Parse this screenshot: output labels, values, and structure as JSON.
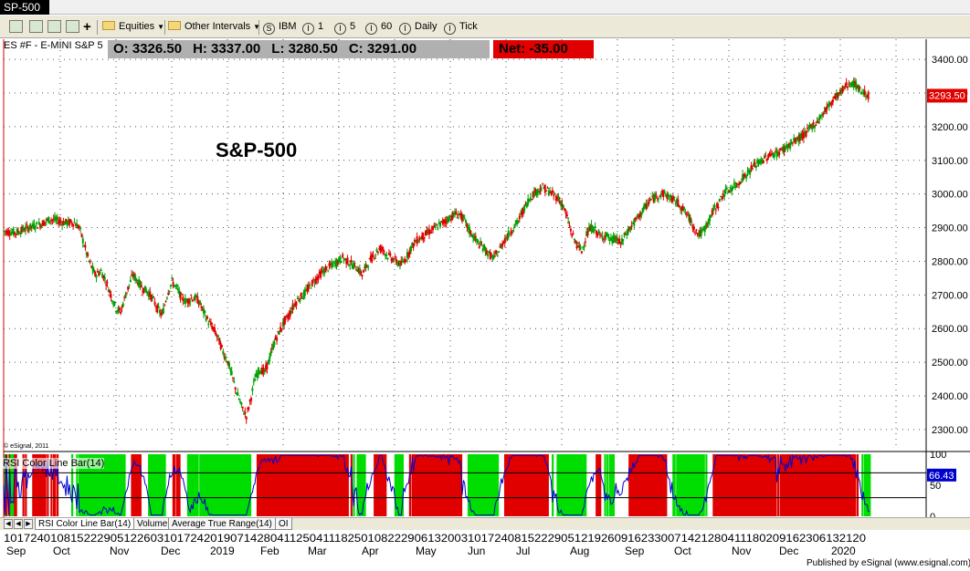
{
  "window": {
    "title": "SP-500"
  },
  "toolbar": {
    "equities_label": "Equities",
    "intervals_label": "Other Intervals",
    "buttons": [
      {
        "icon": "S",
        "label": "IBM"
      },
      {
        "icon": "I",
        "label": "1"
      },
      {
        "icon": "I",
        "label": "5"
      },
      {
        "icon": "I",
        "label": "60"
      },
      {
        "icon": "I",
        "label": "Daily"
      },
      {
        "icon": "I",
        "label": "Tick"
      }
    ]
  },
  "header": {
    "symbol": "ES #F - E-MINI S&P 5",
    "open": "O:  3326.50",
    "high": "H:  3337.00",
    "low": "L:  3280.50",
    "close": "C:  3291.00",
    "net": "Net:  -35.00"
  },
  "watermark": "© eSignal, 2011",
  "tabs": [
    "RSI Color Line Bar(14)",
    "Volume",
    "Average True Range(14)",
    "OI"
  ],
  "footer": "Published by eSignal (www.esignal.com)",
  "colors": {
    "up": "#00a000",
    "down": "#e00000",
    "rsi_line": "#0000cc",
    "rsi_overbought": "#e00000",
    "rsi_oversold": "#00dd00"
  },
  "chart_data": [
    {
      "type": "candlestick",
      "title": "S&P-500",
      "ylim": [
        2240,
        3460
      ],
      "yticks": [
        2300,
        2400,
        2500,
        2600,
        2700,
        2800,
        2900,
        3000,
        3100,
        3200,
        3300,
        3400
      ],
      "last_price": "3293.50",
      "grid": true,
      "closes": [
        [
          0,
          2890
        ],
        [
          10,
          2885
        ],
        [
          20,
          2900
        ],
        [
          30,
          2910
        ],
        [
          38,
          2925
        ],
        [
          45,
          2920
        ],
        [
          50,
          2915
        ],
        [
          58,
          2915
        ],
        [
          62,
          2900
        ],
        [
          66,
          2850
        ],
        [
          70,
          2800
        ],
        [
          75,
          2760
        ],
        [
          80,
          2770
        ],
        [
          84,
          2740
        ],
        [
          88,
          2700
        ],
        [
          92,
          2660
        ],
        [
          96,
          2650
        ],
        [
          100,
          2700
        ],
        [
          103,
          2730
        ],
        [
          106,
          2760
        ],
        [
          110,
          2740
        ],
        [
          114,
          2720
        ],
        [
          118,
          2710
        ],
        [
          122,
          2690
        ],
        [
          126,
          2660
        ],
        [
          130,
          2640
        ],
        [
          134,
          2700
        ],
        [
          138,
          2740
        ],
        [
          142,
          2720
        ],
        [
          146,
          2690
        ],
        [
          150,
          2680
        ],
        [
          154,
          2690
        ],
        [
          158,
          2690
        ],
        [
          160,
          2680
        ],
        [
          164,
          2650
        ],
        [
          168,
          2620
        ],
        [
          172,
          2600
        ],
        [
          176,
          2570
        ],
        [
          180,
          2530
        ],
        [
          184,
          2500
        ],
        [
          188,
          2450
        ],
        [
          192,
          2400
        ],
        [
          196,
          2360
        ],
        [
          199,
          2340
        ],
        [
          202,
          2380
        ],
        [
          206,
          2450
        ],
        [
          210,
          2480
        ],
        [
          214,
          2470
        ],
        [
          218,
          2510
        ],
        [
          222,
          2560
        ],
        [
          226,
          2590
        ],
        [
          230,
          2620
        ],
        [
          234,
          2640
        ],
        [
          238,
          2670
        ],
        [
          242,
          2690
        ],
        [
          246,
          2700
        ],
        [
          250,
          2720
        ],
        [
          254,
          2740
        ],
        [
          258,
          2755
        ],
        [
          262,
          2770
        ],
        [
          266,
          2780
        ],
        [
          270,
          2790
        ],
        [
          274,
          2800
        ],
        [
          278,
          2810
        ],
        [
          282,
          2800
        ],
        [
          286,
          2790
        ],
        [
          290,
          2780
        ],
        [
          294,
          2760
        ],
        [
          298,
          2790
        ],
        [
          302,
          2810
        ],
        [
          306,
          2830
        ],
        [
          310,
          2840
        ],
        [
          314,
          2820
        ],
        [
          318,
          2810
        ],
        [
          322,
          2800
        ],
        [
          326,
          2790
        ],
        [
          330,
          2810
        ],
        [
          334,
          2840
        ],
        [
          338,
          2860
        ],
        [
          342,
          2870
        ],
        [
          346,
          2880
        ],
        [
          350,
          2890
        ],
        [
          354,
          2900
        ],
        [
          358,
          2910
        ],
        [
          362,
          2920
        ],
        [
          366,
          2930
        ],
        [
          370,
          2940
        ],
        [
          374,
          2940
        ],
        [
          378,
          2920
        ],
        [
          382,
          2890
        ],
        [
          386,
          2870
        ],
        [
          390,
          2850
        ],
        [
          394,
          2840
        ],
        [
          398,
          2820
        ],
        [
          402,
          2810
        ],
        [
          406,
          2830
        ],
        [
          410,
          2860
        ],
        [
          414,
          2880
        ],
        [
          418,
          2900
        ],
        [
          422,
          2920
        ],
        [
          426,
          2950
        ],
        [
          430,
          2980
        ],
        [
          434,
          3000
        ],
        [
          438,
          3010
        ],
        [
          442,
          3020
        ],
        [
          446,
          3010
        ],
        [
          450,
          3000
        ],
        [
          454,
          2990
        ],
        [
          458,
          2970
        ],
        [
          462,
          2930
        ],
        [
          466,
          2880
        ],
        [
          470,
          2850
        ],
        [
          474,
          2830
        ],
        [
          478,
          2880
        ],
        [
          482,
          2900
        ],
        [
          486,
          2890
        ],
        [
          490,
          2870
        ],
        [
          494,
          2880
        ],
        [
          498,
          2860
        ],
        [
          502,
          2870
        ],
        [
          506,
          2850
        ],
        [
          510,
          2880
        ],
        [
          514,
          2900
        ],
        [
          518,
          2920
        ],
        [
          522,
          2940
        ],
        [
          526,
          2960
        ],
        [
          530,
          2980
        ],
        [
          534,
          2990
        ],
        [
          538,
          3000
        ],
        [
          542,
          3000
        ],
        [
          546,
          2990
        ],
        [
          550,
          2980
        ],
        [
          554,
          2970
        ],
        [
          558,
          2950
        ],
        [
          562,
          2930
        ],
        [
          566,
          2900
        ],
        [
          570,
          2880
        ],
        [
          574,
          2890
        ],
        [
          578,
          2920
        ],
        [
          582,
          2950
        ],
        [
          586,
          2970
        ],
        [
          590,
          3000
        ],
        [
          594,
          3010
        ],
        [
          598,
          3020
        ],
        [
          602,
          3030
        ],
        [
          606,
          3050
        ],
        [
          610,
          3060
        ],
        [
          614,
          3080
        ],
        [
          618,
          3090
        ],
        [
          622,
          3100
        ],
        [
          626,
          3110
        ],
        [
          630,
          3120
        ],
        [
          634,
          3120
        ],
        [
          638,
          3130
        ],
        [
          642,
          3140
        ],
        [
          646,
          3150
        ],
        [
          650,
          3160
        ],
        [
          654,
          3170
        ],
        [
          658,
          3180
        ],
        [
          662,
          3200
        ],
        [
          666,
          3210
        ],
        [
          670,
          3230
        ],
        [
          674,
          3250
        ],
        [
          678,
          3270
        ],
        [
          682,
          3290
        ],
        [
          686,
          3300
        ],
        [
          690,
          3320
        ],
        [
          694,
          3330
        ],
        [
          698,
          3325
        ],
        [
          702,
          3310
        ],
        [
          706,
          3300
        ],
        [
          710,
          3290
        ]
      ]
    },
    {
      "type": "line",
      "title": "RSI Color Line Bar(14)",
      "ylim": [
        0,
        100
      ],
      "yticks": [
        0,
        50,
        100
      ],
      "levels": [
        70,
        30
      ],
      "last_value": "66.43"
    }
  ],
  "x_axis": {
    "day_labels": "1017240108152229051226031017242019071428041125041118250108222906132003101724081522290512192609162330071421280411180209162306132120",
    "month_labels": [
      "Sep",
      "Oct",
      "Nov",
      "Dec",
      "2019",
      "Feb",
      "Mar",
      "Apr",
      "May",
      "Jun",
      "Jul",
      "Aug",
      "Sep",
      "Oct",
      "Nov",
      "Dec",
      "2020"
    ]
  }
}
